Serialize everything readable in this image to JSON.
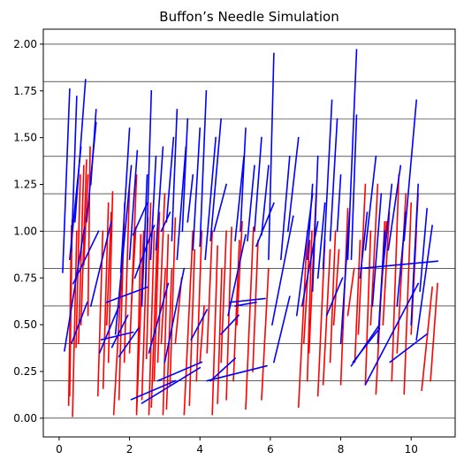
{
  "chart_data": {
    "type": "line",
    "title": "Buffon’s Needle Simulation",
    "xlabel": "",
    "ylabel": "",
    "xlim": [
      -0.45,
      11.25
    ],
    "ylim": [
      -0.1,
      2.08
    ],
    "x_ticks": [
      0,
      2,
      4,
      6,
      8,
      10
    ],
    "x_tick_labels": [
      "0",
      "2",
      "4",
      "6",
      "8",
      "10"
    ],
    "y_ticks": [
      0.0,
      0.25,
      0.5,
      0.75,
      1.0,
      1.25,
      1.5,
      1.75,
      2.0
    ],
    "y_tick_labels": [
      "0.00",
      "0.25",
      "0.50",
      "0.75",
      "1.00",
      "1.25",
      "1.50",
      "1.75",
      "2.00"
    ],
    "horizontal_lines": [
      0.0,
      0.2,
      0.4,
      0.6,
      0.8,
      1.0,
      1.2,
      1.4,
      1.6,
      1.8,
      2.0
    ],
    "grid": false,
    "legend": "none",
    "colors": {
      "crossing": "#ff0000",
      "non_crossing": "#0000ff",
      "lines": "#000000"
    },
    "needles_crossing": [
      [
        0.27,
        0.07,
        0.35,
        1.03
      ],
      [
        0.3,
        0.12,
        0.37,
        1.06
      ],
      [
        0.38,
        0.01,
        0.5,
        1.0
      ],
      [
        0.48,
        0.38,
        0.6,
        1.3
      ],
      [
        0.55,
        0.4,
        0.7,
        1.35
      ],
      [
        0.62,
        0.5,
        0.78,
        1.38
      ],
      [
        0.82,
        0.55,
        0.88,
        1.45
      ],
      [
        0.7,
        0.82,
        0.82,
        1.3
      ],
      [
        1.1,
        0.12,
        1.24,
        1.0
      ],
      [
        1.25,
        0.16,
        1.4,
        1.15
      ],
      [
        1.4,
        0.3,
        1.52,
        1.21
      ],
      [
        1.35,
        0.5,
        1.48,
        1.1
      ],
      [
        1.55,
        0.02,
        1.85,
        1.02
      ],
      [
        1.7,
        0.1,
        1.86,
        1.15
      ],
      [
        1.85,
        0.3,
        2.0,
        1.25
      ],
      [
        2.0,
        0.35,
        2.2,
        1.3
      ],
      [
        2.05,
        0.6,
        2.18,
        1.02
      ],
      [
        2.2,
        0.02,
        2.4,
        1.0
      ],
      [
        2.2,
        0.04,
        2.32,
        0.98
      ],
      [
        2.35,
        0.1,
        2.52,
        1.07
      ],
      [
        2.48,
        0.32,
        2.6,
        1.15
      ],
      [
        2.55,
        0.02,
        2.7,
        1.0
      ],
      [
        2.62,
        0.06,
        2.8,
        1.02
      ],
      [
        2.7,
        0.2,
        2.85,
        1.1
      ],
      [
        2.8,
        0.3,
        3.0,
        1.2
      ],
      [
        2.9,
        0.4,
        3.02,
        0.8
      ],
      [
        3.05,
        0.05,
        3.2,
        0.8
      ],
      [
        3.15,
        0.18,
        3.3,
        1.07
      ],
      [
        3.3,
        0.4,
        3.48,
        0.75
      ],
      [
        3.55,
        0.02,
        3.8,
        1.0
      ],
      [
        3.7,
        0.07,
        3.85,
        0.9
      ],
      [
        3.9,
        0.2,
        4.05,
        1.0
      ],
      [
        4.0,
        0.3,
        4.12,
        0.6
      ],
      [
        4.35,
        0.02,
        4.5,
        0.92
      ],
      [
        4.5,
        0.08,
        4.62,
        0.8
      ],
      [
        4.6,
        0.3,
        4.75,
        1.0
      ],
      [
        4.75,
        0.1,
        4.9,
        1.02
      ],
      [
        4.95,
        0.2,
        5.12,
        0.95
      ],
      [
        5.05,
        0.5,
        5.2,
        1.05
      ],
      [
        5.3,
        0.05,
        5.52,
        1.02
      ],
      [
        5.5,
        0.25,
        5.65,
        0.95
      ],
      [
        5.75,
        0.1,
        5.95,
        0.8
      ],
      [
        6.8,
        0.06,
        7.05,
        1.0
      ],
      [
        7.05,
        0.2,
        7.18,
        1.0
      ],
      [
        7.1,
        0.35,
        7.3,
        1.2
      ],
      [
        7.35,
        0.12,
        7.55,
        0.95
      ],
      [
        7.5,
        0.18,
        7.7,
        0.9
      ],
      [
        7.7,
        0.3,
        7.85,
        1.0
      ],
      [
        7.8,
        0.5,
        7.95,
        0.9
      ],
      [
        8.0,
        0.18,
        8.2,
        1.12
      ],
      [
        8.2,
        0.55,
        8.38,
        0.8
      ],
      [
        8.4,
        0.3,
        8.55,
        0.95
      ],
      [
        8.5,
        0.45,
        8.7,
        1.25
      ],
      [
        8.7,
        0.18,
        8.85,
        1.0
      ],
      [
        8.85,
        0.5,
        9.05,
        1.25
      ],
      [
        9.0,
        0.13,
        9.25,
        1.05
      ],
      [
        9.2,
        0.5,
        9.38,
        1.1
      ],
      [
        9.45,
        0.2,
        9.65,
        1.3
      ],
      [
        9.6,
        0.35,
        9.85,
        1.2
      ],
      [
        9.8,
        0.13,
        10.0,
        1.15
      ],
      [
        10.0,
        0.45,
        10.15,
        1.0
      ],
      [
        10.05,
        0.7,
        10.2,
        1.2
      ],
      [
        10.3,
        0.15,
        10.6,
        0.7
      ],
      [
        10.55,
        0.2,
        10.75,
        0.72
      ],
      [
        9.1,
        0.55,
        9.3,
        1.05
      ],
      [
        6.95,
        0.4,
        7.12,
        0.95
      ],
      [
        4.2,
        0.35,
        4.35,
        1.0
      ],
      [
        2.95,
        0.02,
        3.1,
        0.98
      ]
    ],
    "needles_non_crossing": [
      [
        0.1,
        0.78,
        0.3,
        1.76
      ],
      [
        0.15,
        0.36,
        0.72,
        1.02
      ],
      [
        0.35,
        0.9,
        0.5,
        1.72
      ],
      [
        0.45,
        1.05,
        0.75,
        1.81
      ],
      [
        0.3,
        0.85,
        0.62,
        1.45
      ],
      [
        0.4,
        0.72,
        1.12,
        1.0
      ],
      [
        0.78,
        1.05,
        1.05,
        1.58
      ],
      [
        0.9,
        1.25,
        1.05,
        1.65
      ],
      [
        0.35,
        0.4,
        0.8,
        0.62
      ],
      [
        0.9,
        0.6,
        1.48,
        1.05
      ],
      [
        1.2,
        0.42,
        2.1,
        0.46
      ],
      [
        1.35,
        0.62,
        2.5,
        0.7
      ],
      [
        1.5,
        0.38,
        1.95,
        0.55
      ],
      [
        1.6,
        0.45,
        2.05,
        1.35
      ],
      [
        1.75,
        0.78,
        2.0,
        1.55
      ],
      [
        2.0,
        0.85,
        2.22,
        1.43
      ],
      [
        2.1,
        0.98,
        2.5,
        1.15
      ],
      [
        2.35,
        0.6,
        2.5,
        1.3
      ],
      [
        2.45,
        0.7,
        2.62,
        1.75
      ],
      [
        2.6,
        0.85,
        2.75,
        1.4
      ],
      [
        2.75,
        0.9,
        2.95,
        1.45
      ],
      [
        2.9,
        1.0,
        3.15,
        1.1
      ],
      [
        3.05,
        1.05,
        3.25,
        1.5
      ],
      [
        3.2,
        0.95,
        3.35,
        1.65
      ],
      [
        3.35,
        0.85,
        3.6,
        1.45
      ],
      [
        3.5,
        1.0,
        3.65,
        1.6
      ],
      [
        3.65,
        1.05,
        3.8,
        1.3
      ],
      [
        3.8,
        0.9,
        4.0,
        1.55
      ],
      [
        4.0,
        0.92,
        4.18,
        1.75
      ],
      [
        4.15,
        0.85,
        4.45,
        1.5
      ],
      [
        4.3,
        0.95,
        4.6,
        1.6
      ],
      [
        4.4,
        1.0,
        4.75,
        1.25
      ],
      [
        4.6,
        0.45,
        5.1,
        0.55
      ],
      [
        4.8,
        0.55,
        5.3,
        0.98
      ],
      [
        5.0,
        0.95,
        5.25,
        1.4
      ],
      [
        5.15,
        1.0,
        5.3,
        1.55
      ],
      [
        5.35,
        0.95,
        5.55,
        1.35
      ],
      [
        5.55,
        1.0,
        5.75,
        1.5
      ],
      [
        5.75,
        0.98,
        5.95,
        1.35
      ],
      [
        5.95,
        0.85,
        6.1,
        1.95
      ],
      [
        6.1,
        0.3,
        6.55,
        0.65
      ],
      [
        6.3,
        0.85,
        6.55,
        1.4
      ],
      [
        6.5,
        1.0,
        6.8,
        1.5
      ],
      [
        6.75,
        0.55,
        7.2,
        1.2
      ],
      [
        6.9,
        0.6,
        7.35,
        1.05
      ],
      [
        7.05,
        0.85,
        7.2,
        1.25
      ],
      [
        7.2,
        0.68,
        7.35,
        1.4
      ],
      [
        7.35,
        0.75,
        7.55,
        1.15
      ],
      [
        7.5,
        0.8,
        7.75,
        1.7
      ],
      [
        7.7,
        0.95,
        7.9,
        1.6
      ],
      [
        7.9,
        1.0,
        8.0,
        1.3
      ],
      [
        8.0,
        0.4,
        8.25,
        1.1
      ],
      [
        8.2,
        0.85,
        8.45,
        1.97
      ],
      [
        8.3,
        0.85,
        8.45,
        1.62
      ],
      [
        8.35,
        0.3,
        9.1,
        0.48
      ],
      [
        8.5,
        0.8,
        10.75,
        0.84
      ],
      [
        8.55,
        0.75,
        8.75,
        1.1
      ],
      [
        8.7,
        0.9,
        9.0,
        1.4
      ],
      [
        8.9,
        0.6,
        9.15,
        1.2
      ],
      [
        9.05,
        0.4,
        9.25,
        1.0
      ],
      [
        9.2,
        0.8,
        9.45,
        1.25
      ],
      [
        9.35,
        0.9,
        9.7,
        1.35
      ],
      [
        9.6,
        0.6,
        9.85,
        1.1
      ],
      [
        9.8,
        0.95,
        10.15,
        1.7
      ],
      [
        10.0,
        0.5,
        10.2,
        1.25
      ],
      [
        10.15,
        0.42,
        10.6,
        1.03
      ],
      [
        10.25,
        0.68,
        10.45,
        1.12
      ],
      [
        9.4,
        0.3,
        10.45,
        0.45
      ],
      [
        8.7,
        0.18,
        10.2,
        0.72
      ],
      [
        8.3,
        0.28,
        9.1,
        0.5
      ],
      [
        4.2,
        0.2,
        5.9,
        0.28
      ],
      [
        4.3,
        0.2,
        5.0,
        0.32
      ],
      [
        4.85,
        0.62,
        5.85,
        0.64
      ],
      [
        2.05,
        0.1,
        3.3,
        0.2
      ],
      [
        2.35,
        0.08,
        4.0,
        0.27
      ],
      [
        2.8,
        0.2,
        4.05,
        0.3
      ],
      [
        1.15,
        0.35,
        1.7,
        0.6
      ],
      [
        5.0,
        0.6,
        5.6,
        0.62
      ],
      [
        3.75,
        0.42,
        4.2,
        0.58
      ],
      [
        6.05,
        0.5,
        6.65,
        1.08
      ],
      [
        2.55,
        0.35,
        3.1,
        0.72
      ],
      [
        1.7,
        0.33,
        2.25,
        0.48
      ],
      [
        7.6,
        0.55,
        8.05,
        0.75
      ],
      [
        3.0,
        0.3,
        3.55,
        0.8
      ],
      [
        5.6,
        0.92,
        6.1,
        1.15
      ],
      [
        2.15,
        0.75,
        2.7,
        1.03
      ]
    ]
  }
}
